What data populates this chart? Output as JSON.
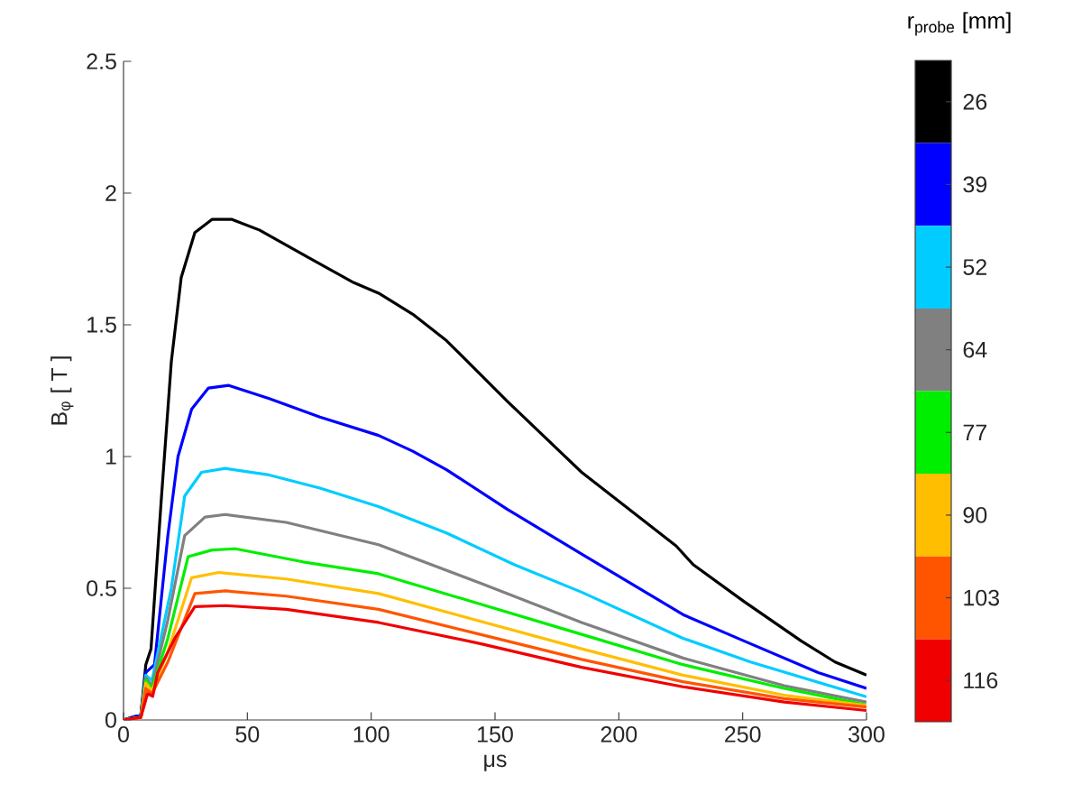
{
  "chart_data": {
    "type": "line",
    "xlabel": "μs",
    "ylabel": "B$_{φ}$ [ T ]",
    "legend_title": "r$_{probe}$ [mm]",
    "legend": "right",
    "xlim": [
      0,
      300
    ],
    "ylim": [
      0,
      2.5
    ],
    "xticks": [
      0,
      50,
      100,
      150,
      200,
      250,
      300
    ],
    "yticks": [
      0,
      0.5,
      1,
      1.5,
      2,
      2.5
    ],
    "series": [
      {
        "name": "26",
        "color": "#000000",
        "x": [
          0,
          7,
          9,
          11.1,
          15.2,
          19.3,
          23.3,
          28.8,
          35.7,
          43.8,
          54.8,
          73.8,
          93,
          103,
          116.8,
          130.4,
          154.9,
          185,
          223.2,
          230,
          250.5,
          273.6,
          287.3,
          300
        ],
        "values": [
          0,
          0.02,
          0.21,
          0.27,
          0.83,
          1.36,
          1.68,
          1.85,
          1.9,
          1.9,
          1.86,
          1.76,
          1.66,
          1.62,
          1.54,
          1.44,
          1.21,
          0.94,
          0.66,
          0.59,
          0.45,
          0.3,
          0.22,
          0.17
        ]
      },
      {
        "name": "39",
        "color": "#0000ff",
        "x": [
          0,
          7,
          9,
          12.5,
          17.9,
          22,
          27.5,
          34.3,
          42.5,
          58.8,
          79.3,
          103,
          116.8,
          130.4,
          154.9,
          185,
          225.9,
          250.5,
          280.5,
          300
        ],
        "values": [
          0,
          0.02,
          0.18,
          0.21,
          0.7,
          1.0,
          1.18,
          1.26,
          1.27,
          1.22,
          1.15,
          1.08,
          1.02,
          0.95,
          0.8,
          0.63,
          0.4,
          0.3,
          0.18,
          0.12
        ]
      },
      {
        "name": "52",
        "color": "#00ccff",
        "x": [
          0,
          7,
          9,
          11.5,
          19.3,
          24.7,
          31.5,
          41.1,
          58.8,
          79.3,
          103,
          130.4,
          157.7,
          185,
          225.9,
          253.2,
          300
        ],
        "values": [
          0,
          0.01,
          0.17,
          0.15,
          0.5,
          0.85,
          0.94,
          0.955,
          0.93,
          0.88,
          0.81,
          0.71,
          0.59,
          0.485,
          0.31,
          0.22,
          0.088
        ]
      },
      {
        "name": "64",
        "color": "#808080",
        "x": [
          0,
          7,
          9,
          11.5,
          17.9,
          24.7,
          32.9,
          41.1,
          65.7,
          103,
          144,
          185,
          225.9,
          266.8,
          300
        ],
        "values": [
          0,
          0.01,
          0.16,
          0.13,
          0.38,
          0.7,
          0.77,
          0.78,
          0.75,
          0.665,
          0.52,
          0.37,
          0.235,
          0.13,
          0.068
        ]
      },
      {
        "name": "77",
        "color": "#00ee00",
        "x": [
          0,
          7,
          9,
          11.5,
          17.9,
          26.1,
          35.7,
          45.2,
          72.5,
          103,
          144,
          185,
          225.9,
          266.8,
          300
        ],
        "values": [
          0,
          0.01,
          0.15,
          0.12,
          0.31,
          0.62,
          0.645,
          0.65,
          0.6,
          0.555,
          0.44,
          0.325,
          0.21,
          0.12,
          0.057
        ]
      },
      {
        "name": "90",
        "color": "#ffbf00",
        "x": [
          0,
          7,
          9,
          11.5,
          17.9,
          27.5,
          38.4,
          65.7,
          103,
          144,
          185,
          225.9,
          266.8,
          300
        ],
        "values": [
          0,
          0.01,
          0.14,
          0.11,
          0.26,
          0.54,
          0.56,
          0.535,
          0.48,
          0.375,
          0.27,
          0.17,
          0.094,
          0.055
        ]
      },
      {
        "name": "103",
        "color": "#ff5500",
        "x": [
          0,
          7,
          9,
          11.5,
          17.9,
          28.8,
          41.1,
          65.7,
          103,
          144,
          185,
          225.9,
          266.8,
          300
        ],
        "values": [
          0,
          0.01,
          0.12,
          0.1,
          0.22,
          0.48,
          0.49,
          0.47,
          0.42,
          0.325,
          0.23,
          0.145,
          0.081,
          0.049
        ]
      },
      {
        "name": "116",
        "color": "#f00000",
        "x": [
          0,
          7,
          9.7,
          11.8,
          13.8,
          20.7,
          28.8,
          41.1,
          65.7,
          103,
          144,
          185,
          225.9,
          266.8,
          300
        ],
        "values": [
          0,
          0.01,
          0.1,
          0.09,
          0.18,
          0.31,
          0.43,
          0.434,
          0.42,
          0.37,
          0.29,
          0.2,
          0.126,
          0.068,
          0.036
        ]
      }
    ]
  }
}
